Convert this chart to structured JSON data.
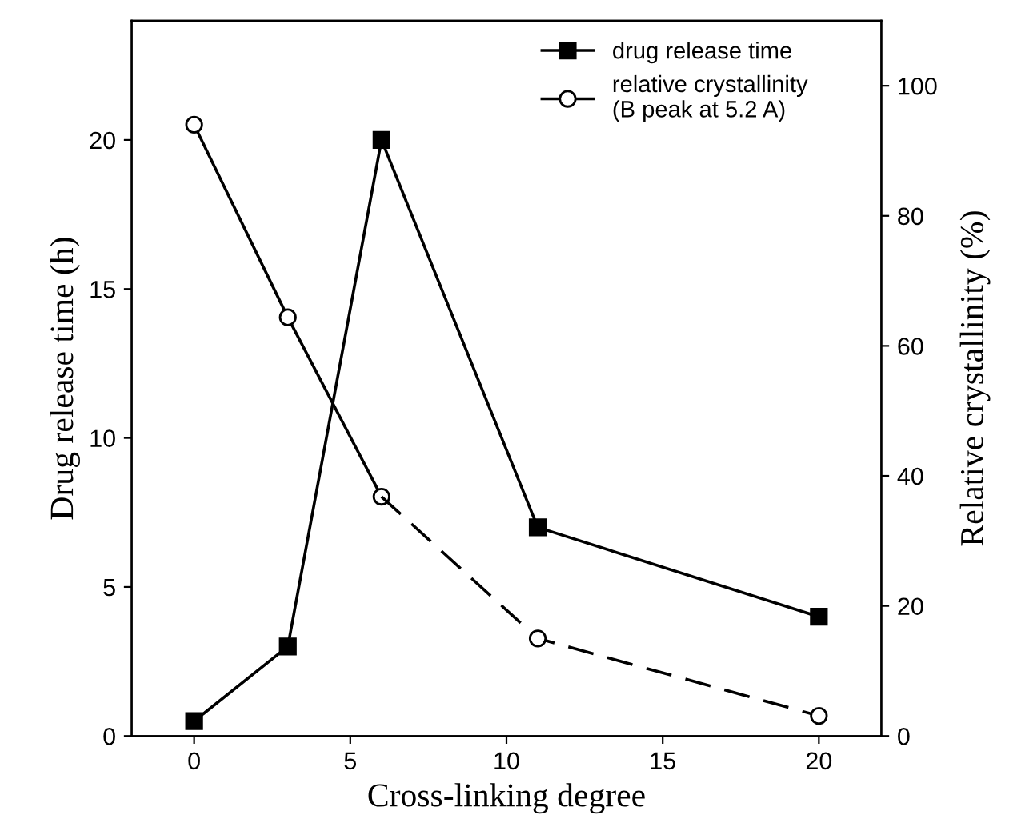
{
  "chart_data": {
    "type": "line",
    "xlabel": "Cross-linking degree",
    "ylabel": "Drug release time (h)",
    "y2label": "Relative crystallinity (%)",
    "xlim": [
      -2,
      22
    ],
    "xticks": [
      0,
      5,
      10,
      15,
      20
    ],
    "ylim": [
      0,
      24
    ],
    "yticks": [
      0,
      5,
      10,
      15,
      20
    ],
    "y2lim": [
      0,
      110
    ],
    "y2ticks": [
      0,
      20,
      40,
      60,
      80,
      100
    ],
    "grid": false,
    "legend": "top right",
    "series": [
      {
        "name": "drug release time",
        "color": "#000000",
        "x": [
          0,
          3,
          6,
          11,
          20
        ],
        "values": [
          0.5,
          3,
          20,
          7,
          4
        ],
        "marker": "square",
        "line_style": "solid"
      },
      {
        "name": "relative crystallinity\n(B peak at 5.2 A)",
        "color": "#000000",
        "x": [
          0,
          3,
          6
        ],
        "values": [
          94,
          64.4,
          36.8
        ],
        "axis": "y2",
        "marker": "circle",
        "line_style": "solid"
      },
      {
        "color": "#000000",
        "x": [
          6,
          11,
          20
        ],
        "values": [
          36.8,
          15,
          3.1
        ],
        "axis": "y2",
        "marker": "circle",
        "line_style": "dashed"
      }
    ]
  }
}
